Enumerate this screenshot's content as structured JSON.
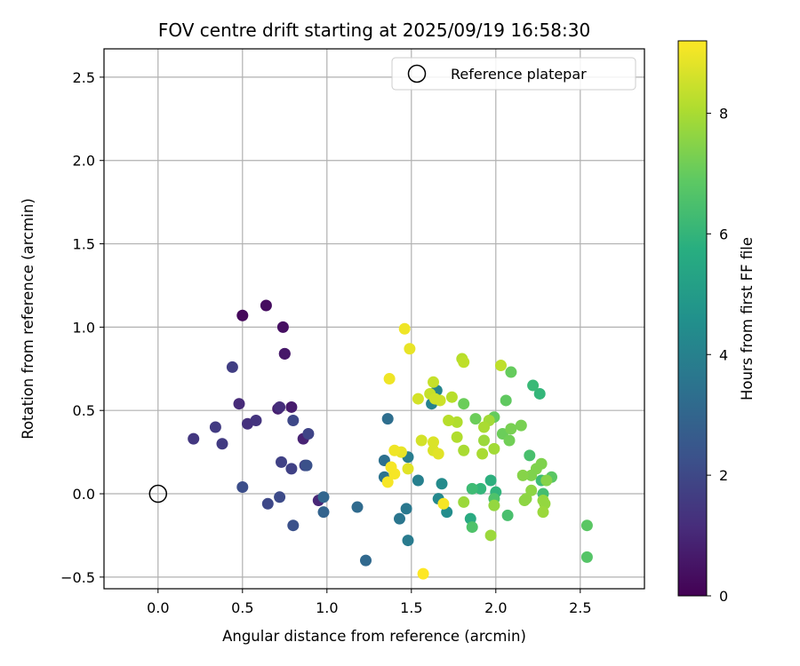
{
  "chart_data": {
    "type": "scatter",
    "title": "FOV centre drift starting at 2025/09/19 16:58:30",
    "xlabel": "Angular distance from reference (arcmin)",
    "ylabel": "Rotation from reference (arcmin)",
    "xlim": [
      -0.32,
      2.88
    ],
    "ylim": [
      -0.57,
      2.67
    ],
    "xticks": [
      0.0,
      0.5,
      1.0,
      1.5,
      2.0,
      2.5
    ],
    "xtick_labels": [
      "0.0",
      "0.5",
      "1.0",
      "1.5",
      "2.0",
      "2.5"
    ],
    "yticks": [
      -0.5,
      0.0,
      0.5,
      1.0,
      1.5,
      2.0,
      2.5
    ],
    "ytick_labels": [
      "−0.5",
      "0.0",
      "0.5",
      "1.0",
      "1.5",
      "2.0",
      "2.5"
    ],
    "grid": true,
    "legend": {
      "position": "top-right",
      "label": "Reference platepar"
    },
    "reference_point": {
      "x": 0.0,
      "y": 0.0,
      "label": "Reference platepar"
    },
    "colorbar": {
      "label": "Hours from first FF file",
      "range": [
        0,
        9.2
      ],
      "ticks": [
        0,
        2,
        4,
        6,
        8
      ],
      "tick_labels": [
        "0",
        "2",
        "4",
        "6",
        "8"
      ],
      "colormap": "viridis"
    },
    "points": [
      {
        "x": 0.5,
        "y": 1.07,
        "h": 0.2
      },
      {
        "x": 0.64,
        "y": 1.13,
        "h": 0.3
      },
      {
        "x": 0.74,
        "y": 1.0,
        "h": 0.4
      },
      {
        "x": 0.75,
        "y": 0.84,
        "h": 0.5
      },
      {
        "x": 0.75,
        "y": 0.84,
        "h": 0.6
      },
      {
        "x": 0.79,
        "y": 0.52,
        "h": 0.7
      },
      {
        "x": 0.71,
        "y": 0.51,
        "h": 0.8
      },
      {
        "x": 0.86,
        "y": 0.33,
        "h": 0.9
      },
      {
        "x": 0.95,
        "y": -0.04,
        "h": 1.0
      },
      {
        "x": 0.48,
        "y": 0.54,
        "h": 1.1
      },
      {
        "x": 0.72,
        "y": 0.52,
        "h": 1.2
      },
      {
        "x": 0.53,
        "y": 0.42,
        "h": 1.3
      },
      {
        "x": 0.58,
        "y": 0.44,
        "h": 1.4
      },
      {
        "x": 0.21,
        "y": 0.33,
        "h": 1.5
      },
      {
        "x": 0.34,
        "y": 0.4,
        "h": 1.6
      },
      {
        "x": 0.38,
        "y": 0.3,
        "h": 1.6
      },
      {
        "x": 0.44,
        "y": 0.76,
        "h": 1.7
      },
      {
        "x": 0.73,
        "y": 0.19,
        "h": 1.8
      },
      {
        "x": 0.79,
        "y": 0.15,
        "h": 1.8
      },
      {
        "x": 0.87,
        "y": 0.17,
        "h": 1.9
      },
      {
        "x": 0.89,
        "y": 0.36,
        "h": 1.9
      },
      {
        "x": 0.8,
        "y": 0.44,
        "h": 2.0
      },
      {
        "x": 0.65,
        "y": -0.06,
        "h": 2.0
      },
      {
        "x": 0.72,
        "y": -0.02,
        "h": 2.1
      },
      {
        "x": 0.5,
        "y": 0.04,
        "h": 2.2
      },
      {
        "x": 0.8,
        "y": -0.19,
        "h": 2.3
      },
      {
        "x": 0.88,
        "y": 0.17,
        "h": 2.3
      },
      {
        "x": 0.98,
        "y": -0.11,
        "h": 2.9
      },
      {
        "x": 0.98,
        "y": -0.02,
        "h": 3.0
      },
      {
        "x": 1.23,
        "y": -0.4,
        "h": 3.1
      },
      {
        "x": 1.18,
        "y": -0.08,
        "h": 3.2
      },
      {
        "x": 1.36,
        "y": 0.45,
        "h": 3.3
      },
      {
        "x": 1.34,
        "y": 0.2,
        "h": 3.4
      },
      {
        "x": 1.34,
        "y": 0.1,
        "h": 3.5
      },
      {
        "x": 1.43,
        "y": -0.15,
        "h": 3.6
      },
      {
        "x": 1.47,
        "y": -0.09,
        "h": 3.7
      },
      {
        "x": 1.48,
        "y": -0.28,
        "h": 3.8
      },
      {
        "x": 1.48,
        "y": 0.22,
        "h": 3.9
      },
      {
        "x": 1.54,
        "y": 0.08,
        "h": 4.0
      },
      {
        "x": 1.62,
        "y": 0.54,
        "h": 4.1
      },
      {
        "x": 1.65,
        "y": 0.62,
        "h": 4.2
      },
      {
        "x": 1.66,
        "y": -0.03,
        "h": 4.3
      },
      {
        "x": 1.68,
        "y": 0.06,
        "h": 4.4
      },
      {
        "x": 1.71,
        "y": -0.11,
        "h": 4.5
      },
      {
        "x": 1.85,
        "y": -0.15,
        "h": 5.6
      },
      {
        "x": 1.97,
        "y": 0.08,
        "h": 5.8
      },
      {
        "x": 2.0,
        "y": 0.01,
        "h": 6.0
      },
      {
        "x": 1.91,
        "y": 0.03,
        "h": 6.1
      },
      {
        "x": 1.86,
        "y": 0.03,
        "h": 6.3
      },
      {
        "x": 2.26,
        "y": 0.6,
        "h": 6.1
      },
      {
        "x": 2.22,
        "y": 0.65,
        "h": 6.2
      },
      {
        "x": 2.27,
        "y": 0.08,
        "h": 6.3
      },
      {
        "x": 2.28,
        "y": 0.0,
        "h": 6.4
      },
      {
        "x": 2.07,
        "y": -0.13,
        "h": 6.5
      },
      {
        "x": 2.2,
        "y": 0.23,
        "h": 6.5
      },
      {
        "x": 1.86,
        "y": -0.2,
        "h": 6.6
      },
      {
        "x": 1.99,
        "y": -0.03,
        "h": 6.6
      },
      {
        "x": 2.54,
        "y": -0.38,
        "h": 6.7
      },
      {
        "x": 2.54,
        "y": -0.19,
        "h": 6.8
      },
      {
        "x": 2.33,
        "y": 0.1,
        "h": 6.8
      },
      {
        "x": 2.06,
        "y": 0.56,
        "h": 6.9
      },
      {
        "x": 2.09,
        "y": 0.73,
        "h": 7.0
      },
      {
        "x": 1.99,
        "y": 0.46,
        "h": 7.0
      },
      {
        "x": 1.81,
        "y": 0.54,
        "h": 7.1
      },
      {
        "x": 1.88,
        "y": 0.45,
        "h": 7.1
      },
      {
        "x": 2.04,
        "y": 0.36,
        "h": 7.1
      },
      {
        "x": 2.08,
        "y": 0.32,
        "h": 7.2
      },
      {
        "x": 2.09,
        "y": 0.39,
        "h": 7.3
      },
      {
        "x": 2.15,
        "y": 0.41,
        "h": 7.3
      },
      {
        "x": 2.24,
        "y": 0.15,
        "h": 7.4
      },
      {
        "x": 2.27,
        "y": 0.18,
        "h": 7.4
      },
      {
        "x": 2.21,
        "y": 0.11,
        "h": 7.4
      },
      {
        "x": 2.3,
        "y": 0.08,
        "h": 7.5
      },
      {
        "x": 2.16,
        "y": 0.11,
        "h": 7.5
      },
      {
        "x": 2.17,
        "y": -0.04,
        "h": 7.6
      },
      {
        "x": 2.18,
        "y": -0.03,
        "h": 7.6
      },
      {
        "x": 2.21,
        "y": 0.02,
        "h": 7.6
      },
      {
        "x": 2.28,
        "y": -0.04,
        "h": 7.7
      },
      {
        "x": 2.29,
        "y": -0.06,
        "h": 7.7
      },
      {
        "x": 2.28,
        "y": -0.11,
        "h": 7.8
      },
      {
        "x": 1.99,
        "y": -0.07,
        "h": 7.7
      },
      {
        "x": 1.81,
        "y": -0.05,
        "h": 7.8
      },
      {
        "x": 1.97,
        "y": -0.25,
        "h": 7.8
      },
      {
        "x": 1.93,
        "y": 0.32,
        "h": 7.8
      },
      {
        "x": 1.96,
        "y": 0.44,
        "h": 7.9
      },
      {
        "x": 1.99,
        "y": 0.27,
        "h": 7.9
      },
      {
        "x": 1.92,
        "y": 0.24,
        "h": 8.0
      },
      {
        "x": 1.93,
        "y": 0.4,
        "h": 8.0
      },
      {
        "x": 1.81,
        "y": 0.26,
        "h": 8.0
      },
      {
        "x": 1.77,
        "y": 0.43,
        "h": 8.1
      },
      {
        "x": 1.77,
        "y": 0.34,
        "h": 8.1
      },
      {
        "x": 1.74,
        "y": 0.58,
        "h": 8.2
      },
      {
        "x": 1.72,
        "y": 0.44,
        "h": 8.2
      },
      {
        "x": 1.8,
        "y": 0.81,
        "h": 8.2
      },
      {
        "x": 1.81,
        "y": 0.79,
        "h": 8.3
      },
      {
        "x": 2.03,
        "y": 0.77,
        "h": 8.3
      },
      {
        "x": 1.63,
        "y": 0.67,
        "h": 8.4
      },
      {
        "x": 1.61,
        "y": 0.6,
        "h": 8.4
      },
      {
        "x": 1.64,
        "y": 0.57,
        "h": 8.5
      },
      {
        "x": 1.67,
        "y": 0.56,
        "h": 8.5
      },
      {
        "x": 1.54,
        "y": 0.57,
        "h": 8.6
      },
      {
        "x": 1.56,
        "y": 0.32,
        "h": 8.6
      },
      {
        "x": 1.63,
        "y": 0.31,
        "h": 8.7
      },
      {
        "x": 1.63,
        "y": 0.26,
        "h": 8.7
      },
      {
        "x": 1.66,
        "y": 0.24,
        "h": 8.8
      },
      {
        "x": 1.48,
        "y": 0.15,
        "h": 8.8
      },
      {
        "x": 1.44,
        "y": 0.25,
        "h": 8.9
      },
      {
        "x": 1.49,
        "y": 0.87,
        "h": 8.9
      },
      {
        "x": 1.46,
        "y": 0.99,
        "h": 9.0
      },
      {
        "x": 1.37,
        "y": 0.69,
        "h": 9.0
      },
      {
        "x": 1.4,
        "y": 0.26,
        "h": 9.0
      },
      {
        "x": 1.38,
        "y": 0.16,
        "h": 9.1
      },
      {
        "x": 1.36,
        "y": 0.07,
        "h": 9.1
      },
      {
        "x": 1.4,
        "y": 0.12,
        "h": 9.1
      },
      {
        "x": 1.69,
        "y": -0.06,
        "h": 9.1
      },
      {
        "x": 1.57,
        "y": -0.48,
        "h": 9.2
      }
    ]
  }
}
